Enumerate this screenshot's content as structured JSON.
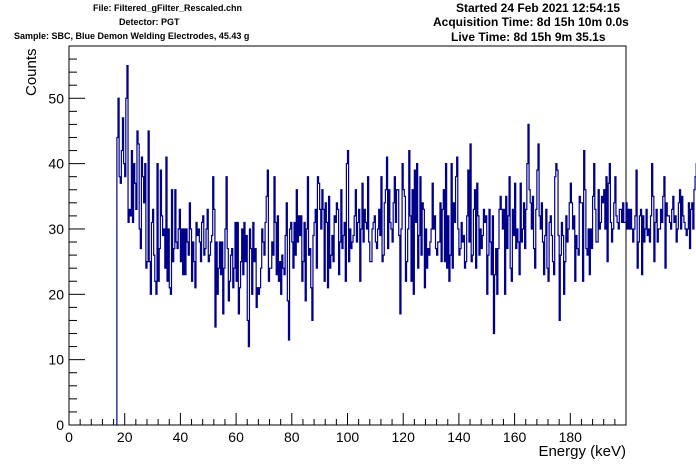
{
  "header": {
    "file": "File: Filtered_gFilter_Rescaled.chn",
    "detector": "Detector: PGT",
    "sample": "Sample: SBC, Blue Demon Welding Electrodes, 45.43 g",
    "started": "Started 24 Feb 2021 12:54:15",
    "acquisition": "Acquisition Time: 8d 15h 10m 0.0s",
    "live": "Live Time: 8d 15h 9m 35.1s"
  },
  "chart_data": {
    "type": "line",
    "style": "step histogram",
    "xlabel": "Energy (keV)",
    "ylabel": "Counts",
    "xlim": [
      0,
      200
    ],
    "ylim": [
      0,
      58
    ],
    "xticks": [
      0,
      20,
      40,
      60,
      80,
      100,
      120,
      140,
      160,
      180
    ],
    "yticks": [
      0,
      10,
      20,
      30,
      40,
      50
    ],
    "color": "#00008b",
    "grid": false,
    "legend": "none",
    "series": [
      {
        "x_start": 16.8,
        "bin_width": 0.4,
        "values": [
          0,
          44,
          50,
          38,
          37,
          42,
          47,
          40,
          38,
          50,
          55,
          31,
          33,
          32,
          42,
          31,
          40,
          37,
          33,
          45,
          43,
          30,
          27,
          41,
          38,
          34,
          40,
          24,
          25,
          45,
          25,
          20,
          31,
          33,
          26,
          22,
          20,
          40,
          22,
          27,
          39,
          32,
          29,
          30,
          24,
          41,
          22,
          30,
          21,
          20,
          36,
          25,
          27,
          36,
          28,
          27,
          30,
          33,
          25,
          30,
          23,
          30,
          23,
          30,
          28,
          26,
          34,
          30,
          22,
          28,
          25,
          21,
          31,
          29,
          30,
          28,
          25,
          31,
          32,
          26,
          27,
          30,
          33,
          25,
          26,
          28,
          29,
          38,
          33,
          15,
          28,
          20,
          24,
          28,
          23,
          28,
          17,
          24,
          30,
          38,
          27,
          19,
          22,
          26,
          27,
          21,
          24,
          31,
          22,
          31,
          17,
          21,
          25,
          30,
          23,
          31,
          25,
          29,
          16,
          12,
          30,
          27,
          20,
          31,
          25,
          27,
          18,
          21,
          20,
          21,
          24,
          30,
          28,
          26,
          31,
          35,
          39,
          22,
          24,
          24,
          28,
          26,
          38,
          31,
          23,
          32,
          22,
          25,
          20,
          26,
          24,
          23,
          29,
          34,
          19,
          13,
          30,
          31,
          28,
          24,
          31,
          26,
          36,
          28,
          32,
          29,
          32,
          22,
          25,
          31,
          19,
          30,
          38,
          26,
          27,
          21,
          16,
          29,
          31,
          33,
          24,
          38,
          37,
          33,
          30,
          36,
          33,
          22,
          34,
          31,
          21,
          35,
          24,
          26,
          29,
          25,
          32,
          31,
          34,
          33,
          23,
          28,
          36,
          27,
          29,
          31,
          22,
          40,
          42,
          25,
          30,
          27,
          28,
          29,
          32,
          36,
          28,
          31,
          33,
          22,
          30,
          37,
          28,
          33,
          31,
          30,
          38,
          28,
          25,
          25,
          30,
          31,
          32,
          28,
          27,
          30,
          33,
          29,
          38,
          25,
          26,
          34,
          36,
          41,
          27,
          36,
          31,
          30,
          28,
          34,
          38,
          31,
          36,
          36,
          29,
          17,
          30,
          40,
          36,
          35,
          22,
          25,
          30,
          42,
          32,
          22,
          36,
          20,
          39,
          31,
          40,
          24,
          29,
          38,
          26,
          34,
          33,
          21,
          30,
          24,
          27,
          26,
          28,
          30,
          37,
          30,
          32,
          27,
          26,
          28,
          28,
          34,
          25,
          33,
          36,
          25,
          40,
          24,
          32,
          22,
          26,
          40,
          24,
          34,
          31,
          38,
          41,
          30,
          26,
          27,
          31,
          28,
          29,
          24,
          25,
          32,
          39,
          28,
          43,
          25,
          26,
          33,
          36,
          24,
          37,
          32,
          26,
          30,
          27,
          29,
          33,
          31,
          32,
          20,
          26,
          33,
          28,
          23,
          32,
          14,
          23,
          27,
          20,
          27,
          33,
          35,
          33,
          30,
          33,
          20,
          35,
          27,
          32,
          38,
          24,
          22,
          33,
          29,
          37,
          27,
          30,
          28,
          23,
          37,
          28,
          30,
          34,
          27,
          33,
          40,
          46,
          36,
          34,
          30,
          35,
          27,
          24,
          33,
          39,
          43,
          32,
          30,
          34,
          28,
          23,
          29,
          33,
          24,
          22,
          31,
          32,
          29,
          25,
          23,
          38,
          40,
          39,
          29,
          16,
          26,
          31,
          29,
          20,
          25,
          32,
          28,
          30,
          34,
          37,
          34,
          30,
          32,
          22,
          29,
          27,
          26,
          35,
          34,
          34,
          22,
          42,
          36,
          27,
          26,
          30,
          23,
          30,
          27,
          35,
          40,
          33,
          28,
          28,
          36,
          30,
          31,
          35,
          34,
          36,
          30,
          38,
          25,
          37,
          40,
          31,
          28,
          30,
          34,
          38,
          32,
          31,
          30,
          33,
          33,
          31,
          34,
          31,
          31,
          34,
          30,
          33,
          30,
          33,
          30,
          28,
          30,
          32,
          39,
          24,
          28,
          32,
          33,
          23,
          32,
          28,
          30,
          33,
          29,
          30,
          28,
          32,
          40,
          35,
          25,
          31,
          33,
          28,
          30,
          30,
          33,
          31,
          35,
          38,
          24,
          34,
          32,
          32,
          31,
          30,
          33,
          35,
          31,
          32,
          28,
          30,
          34,
          36,
          30,
          35,
          32,
          31,
          30,
          29,
          30,
          34,
          27,
          33,
          34,
          30,
          36,
          38,
          40,
          36,
          35,
          37,
          36,
          34,
          38,
          55,
          40,
          36,
          35,
          37,
          35,
          30,
          27
        ]
      }
    ]
  }
}
